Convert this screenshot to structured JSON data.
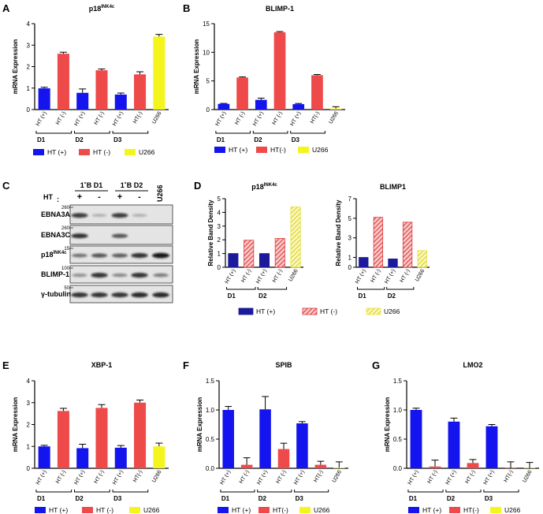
{
  "colors": {
    "blue": "#1414ee",
    "red": "#ee4a4a",
    "yellow": "#f5f51e",
    "darkblue": "#1a1a9a",
    "hatchred": "#e03a3a",
    "hatchyellow": "#e8e23a"
  },
  "legend_bar": {
    "ht_pos": "HT (+)",
    "ht_neg_space": "HT (-)",
    "ht_neg": "HT(-)",
    "u266": "U266"
  },
  "chart_data": [
    {
      "id": "A",
      "panel_label": "A",
      "type": "bar",
      "title": "p18",
      "title_sup": "INK4c",
      "ylabel": "mRNA  Expression",
      "ylim": [
        0,
        4
      ],
      "yticks": [
        0,
        1,
        2,
        3,
        4
      ],
      "ytick_labels": [
        "0",
        "1",
        "2",
        "3",
        "4"
      ],
      "categories": [
        "HT (+)",
        "HT (-)",
        "HT (+)",
        "HT (-)",
        "HT (+)",
        "HT(-)",
        "U266"
      ],
      "values": [
        0.99,
        2.6,
        0.78,
        1.83,
        0.7,
        1.64,
        3.4
      ],
      "errors": [
        0.05,
        0.07,
        0.18,
        0.06,
        0.07,
        0.12,
        0.1
      ],
      "series_index": [
        0,
        1,
        0,
        1,
        0,
        1,
        2
      ],
      "groups": [
        {
          "label": "D1",
          "from": 0,
          "to": 1
        },
        {
          "label": "D2",
          "from": 2,
          "to": 3
        },
        {
          "label": "D3",
          "from": 4,
          "to": 5
        }
      ],
      "legend": [
        "HT (+)",
        "HT (-)",
        "U266"
      ]
    },
    {
      "id": "B",
      "panel_label": "B",
      "type": "bar",
      "title": "BLIMP-1",
      "ylabel": "mRNA  Expression",
      "ylim": [
        0,
        15
      ],
      "yticks": [
        0,
        5,
        10,
        15
      ],
      "ytick_labels": [
        "0",
        "5",
        "10",
        "15"
      ],
      "categories": [
        "HT (+)",
        "HT (-)",
        "HT (+)",
        "HT (-)",
        "HT (+)",
        "HT(-)",
        "U266"
      ],
      "values": [
        1.0,
        5.6,
        1.7,
        13.5,
        0.95,
        6.0,
        0.2
      ],
      "errors": [
        0.08,
        0.1,
        0.3,
        0.12,
        0.12,
        0.12,
        0.3
      ],
      "series_index": [
        0,
        1,
        0,
        1,
        0,
        1,
        2
      ],
      "groups": [
        {
          "label": "D1",
          "from": 0,
          "to": 1
        },
        {
          "label": "D2",
          "from": 2,
          "to": 3
        },
        {
          "label": "D3",
          "from": 4,
          "to": 5
        }
      ],
      "legend": [
        "HT (+)",
        "HT(-)",
        "U266"
      ]
    },
    {
      "id": "D1",
      "panel_label": "D",
      "type": "bar",
      "title": "p18",
      "title_sup": "INK4c",
      "ylabel": "Relative Band Density",
      "ylim": [
        0,
        5
      ],
      "yticks": [
        0,
        1,
        2,
        3,
        4,
        5
      ],
      "ytick_labels": [
        "0",
        "1",
        "2",
        "3",
        "4",
        "5"
      ],
      "categories": [
        "HT (+)",
        "HT (-)",
        "HT (+)",
        "HT (-)",
        "U266"
      ],
      "values": [
        1.0,
        1.97,
        1.0,
        2.1,
        4.4
      ],
      "series_index": [
        0,
        1,
        0,
        1,
        2
      ],
      "groups": [
        {
          "label": "D1",
          "from": 0,
          "to": 1
        },
        {
          "label": "D2",
          "from": 2,
          "to": 3
        }
      ]
    },
    {
      "id": "D2",
      "type": "bar",
      "title": "BLIMP1",
      "ylabel": "Relative Band Density",
      "ylim": [
        0,
        7
      ],
      "yticks": [
        0,
        1,
        3,
        5,
        7
      ],
      "ytick_labels": [
        "0",
        "1",
        "3",
        "5",
        "7"
      ],
      "categories": [
        "HT (+)",
        "HT (-)",
        "HT (+)",
        "HT (-)",
        "U266"
      ],
      "values": [
        1.0,
        5.1,
        0.85,
        4.6,
        1.7
      ],
      "series_index": [
        0,
        1,
        0,
        1,
        2
      ],
      "groups": [
        {
          "label": "D1",
          "from": 0,
          "to": 1
        },
        {
          "label": "D2",
          "from": 2,
          "to": 3
        }
      ],
      "legend": [
        "HT (+)",
        "HT (-)",
        "U266"
      ]
    },
    {
      "id": "E",
      "panel_label": "E",
      "type": "bar",
      "title": "XBP-1",
      "ylabel": "mRNA  Expression",
      "ylim": [
        0,
        4
      ],
      "yticks": [
        0,
        1,
        2,
        3,
        4
      ],
      "ytick_labels": [
        "0",
        "1",
        "2",
        "3",
        "4"
      ],
      "categories": [
        "HT (+)",
        "HT (-)",
        "HT (+)",
        "HT (-)",
        "HT (+)",
        "HT(-)",
        "U266"
      ],
      "values": [
        1.0,
        2.62,
        0.92,
        2.76,
        0.94,
        3.0,
        1.0
      ],
      "errors": [
        0.05,
        0.12,
        0.18,
        0.15,
        0.1,
        0.12,
        0.15
      ],
      "series_index": [
        0,
        1,
        0,
        1,
        0,
        1,
        2
      ],
      "groups": [
        {
          "label": "D1",
          "from": 0,
          "to": 1
        },
        {
          "label": "D2",
          "from": 2,
          "to": 3
        },
        {
          "label": "D3",
          "from": 4,
          "to": 5
        }
      ],
      "legend": [
        "HT (+)",
        "HT (-)",
        "U266"
      ]
    },
    {
      "id": "F",
      "panel_label": "F",
      "type": "bar",
      "title": "SPIB",
      "ylabel": "mRNA Expression",
      "ylim": [
        0,
        1.5
      ],
      "yticks": [
        0,
        0.5,
        1.0,
        1.5
      ],
      "ytick_labels": [
        "0.0",
        "0.5",
        "1.0",
        "1.5"
      ],
      "categories": [
        "HT (+)",
        "HT (-)",
        "HT (+)",
        "HT (-)",
        "HT (+)",
        "HT(-)",
        "U266"
      ],
      "values": [
        1.0,
        0.06,
        1.01,
        0.33,
        0.77,
        0.06,
        0.01
      ],
      "errors": [
        0.06,
        0.12,
        0.22,
        0.1,
        0.03,
        0.06,
        0.1
      ],
      "series_index": [
        0,
        1,
        0,
        1,
        0,
        1,
        2
      ],
      "groups": [
        {
          "label": "D1",
          "from": 0,
          "to": 1
        },
        {
          "label": "D2",
          "from": 2,
          "to": 3
        },
        {
          "label": "D3",
          "from": 4,
          "to": 5
        }
      ],
      "legend": [
        "HT (+)",
        "HT(-)",
        "U266"
      ]
    },
    {
      "id": "G",
      "panel_label": "G",
      "type": "bar",
      "title": "LMO2",
      "ylabel": "mRNA Expression",
      "ylim": [
        0,
        1.5
      ],
      "yticks": [
        0,
        0.5,
        1.0,
        1.5
      ],
      "ytick_labels": [
        "0.0",
        "0.5",
        "1.0",
        "1.5"
      ],
      "categories": [
        "HT (+)",
        "HT (-)",
        "HT (+)",
        "HT (-)",
        "HT (+)",
        "HT(-)",
        "U266"
      ],
      "values": [
        1.0,
        0.03,
        0.8,
        0.09,
        0.72,
        0.0,
        0.0
      ],
      "errors": [
        0.03,
        0.11,
        0.06,
        0.06,
        0.03,
        0.11,
        0.1
      ],
      "series_index": [
        0,
        1,
        0,
        1,
        0,
        1,
        2
      ],
      "groups": [
        {
          "label": "D1",
          "from": 0,
          "to": 1
        },
        {
          "label": "D2",
          "from": 2,
          "to": 3
        },
        {
          "label": "D3",
          "from": 4,
          "to": 5
        }
      ],
      "legend": [
        "HT (+)",
        "HT(-)",
        "U266"
      ]
    }
  ],
  "western_blot": {
    "panel_label": "C",
    "header_groups": [
      "1˚B D1",
      "1˚B D2"
    ],
    "u266_label": "U266",
    "ht_label": "HT",
    "ht_colon": ":",
    "lane_signs": [
      "+",
      "-",
      "+",
      "-"
    ],
    "rows": [
      {
        "name": "EBNA3A",
        "marker": "260",
        "intensity": [
          0.75,
          0.15,
          0.75,
          0.15,
          0.0
        ]
      },
      {
        "name": "EBNA3C",
        "marker": "260",
        "intensity": [
          0.8,
          0.0,
          0.6,
          0.0,
          0.0
        ]
      },
      {
        "name": "p18",
        "name_sup": "INK4c",
        "marker": "15",
        "intensity": [
          0.45,
          0.6,
          0.55,
          0.8,
          0.95
        ]
      },
      {
        "name": "BLIMP-1",
        "marker": "100",
        "intensity": [
          0.3,
          0.8,
          0.35,
          0.8,
          0.4
        ]
      },
      {
        "name": "γ-tubulin",
        "marker": "50",
        "intensity": [
          0.8,
          0.8,
          0.8,
          0.85,
          0.85
        ]
      }
    ]
  }
}
